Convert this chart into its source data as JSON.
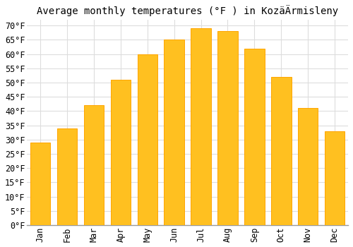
{
  "title": "Average monthly temperatures (°F ) in KozäÄrmisleny",
  "months": [
    "Jan",
    "Feb",
    "Mar",
    "Apr",
    "May",
    "Jun",
    "Jul",
    "Aug",
    "Sep",
    "Oct",
    "Nov",
    "Dec"
  ],
  "values": [
    29,
    34,
    42,
    51,
    60,
    65,
    69,
    68,
    62,
    52,
    41,
    33
  ],
  "bar_color": "#FFC020",
  "bar_edge_color": "#FFA500",
  "background_color": "#FFFFFF",
  "grid_color": "#DDDDDD",
  "ylim": [
    0,
    72
  ],
  "yticks": [
    0,
    5,
    10,
    15,
    20,
    25,
    30,
    35,
    40,
    45,
    50,
    55,
    60,
    65,
    70
  ],
  "title_fontsize": 10,
  "tick_fontsize": 8.5,
  "font_family": "monospace"
}
